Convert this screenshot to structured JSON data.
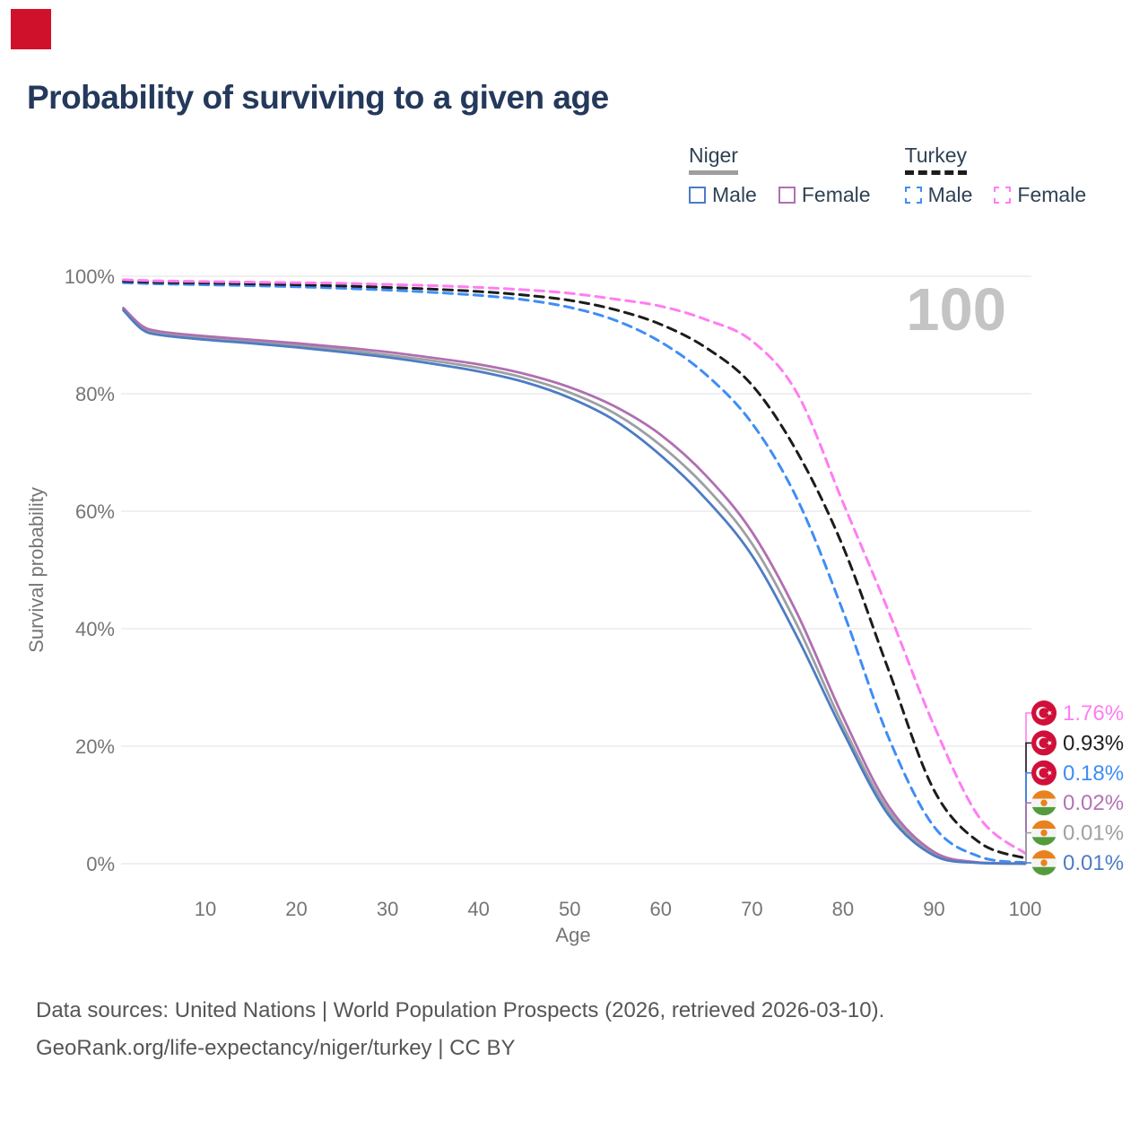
{
  "corner_badge": {
    "color": "#d0112b"
  },
  "title": "Probability of surviving to a given age",
  "legend": {
    "groups": [
      {
        "name": "Niger",
        "line_style": "solid",
        "line_color": "#9e9e9e",
        "items": [
          {
            "label": "Male",
            "color": "#4d7cc3",
            "dashed": false
          },
          {
            "label": "Female",
            "color": "#b06fb0",
            "dashed": false
          }
        ]
      },
      {
        "name": "Turkey",
        "line_style": "dashed",
        "line_color": "#1c1c1c",
        "items": [
          {
            "label": "Male",
            "color": "#3f8df6",
            "dashed": true
          },
          {
            "label": "Female",
            "color": "#ff7df2",
            "dashed": true
          }
        ]
      }
    ]
  },
  "watermark": "100",
  "chart_data": {
    "type": "line",
    "title": "Probability of surviving to a given age",
    "xlabel": "Age",
    "ylabel": "Survival probability",
    "xlim": [
      1,
      100
    ],
    "ylim": [
      0,
      100
    ],
    "grid": "horizontal",
    "x_ticks": [
      10,
      20,
      30,
      40,
      50,
      60,
      70,
      80,
      90,
      100
    ],
    "y_ticks": [
      0,
      20,
      40,
      60,
      80,
      100
    ],
    "y_tick_suffix": "%",
    "x": [
      1,
      3,
      5,
      10,
      15,
      20,
      25,
      30,
      35,
      40,
      45,
      50,
      55,
      60,
      65,
      70,
      75,
      80,
      85,
      90,
      95,
      100
    ],
    "series": [
      {
        "name": "Turkey Male",
        "slug": "turkey-male",
        "color": "#3f8df6",
        "dashed": true,
        "values": [
          98.9,
          98.8,
          98.7,
          98.55,
          98.4,
          98.2,
          97.95,
          97.65,
          97.25,
          96.75,
          96.0,
          94.7,
          92.5,
          88.8,
          83.2,
          75.0,
          62.0,
          43.0,
          21.5,
          6.3,
          1.2,
          0.18
        ]
      },
      {
        "name": "Turkey",
        "slug": "turkey-combined",
        "color": "#1c1c1c",
        "dashed": true,
        "values": [
          99.15,
          99.05,
          98.95,
          98.85,
          98.7,
          98.55,
          98.35,
          98.1,
          97.8,
          97.4,
          96.8,
          95.9,
          94.3,
          91.8,
          87.8,
          81.5,
          70.0,
          54.0,
          33.0,
          12.5,
          3.6,
          0.93
        ]
      },
      {
        "name": "Turkey Female",
        "slug": "turkey-female",
        "color": "#ff7df2",
        "dashed": true,
        "values": [
          99.4,
          99.3,
          99.2,
          99.1,
          99.0,
          98.9,
          98.8,
          98.6,
          98.4,
          98.1,
          97.7,
          97.1,
          96.1,
          94.9,
          92.6,
          89.0,
          80.0,
          61.5,
          43.0,
          23.5,
          7.8,
          1.76
        ]
      },
      {
        "name": "Niger",
        "slug": "niger-combined",
        "color": "#9ca0a3",
        "dashed": false,
        "values": [
          94.4,
          91.3,
          90.3,
          89.5,
          88.9,
          88.2,
          87.5,
          86.6,
          85.6,
          84.4,
          82.7,
          80.2,
          76.6,
          71.2,
          64.0,
          54.5,
          40.5,
          23.5,
          9.0,
          1.7,
          0.15,
          0.01
        ]
      },
      {
        "name": "Niger Female",
        "slug": "niger-female",
        "color": "#b06fb0",
        "dashed": false,
        "values": [
          94.6,
          91.6,
          90.6,
          89.8,
          89.2,
          88.6,
          87.9,
          87.1,
          86.1,
          85.0,
          83.4,
          81.1,
          77.8,
          73.0,
          66.0,
          56.5,
          42.5,
          25.0,
          9.8,
          2.0,
          0.2,
          0.02
        ]
      },
      {
        "name": "Niger Male",
        "slug": "niger-male",
        "color": "#4d7cc3",
        "dashed": false,
        "values": [
          94.2,
          91.0,
          90.0,
          89.2,
          88.6,
          87.9,
          87.1,
          86.2,
          85.1,
          83.8,
          82.0,
          79.3,
          75.4,
          69.5,
          62.0,
          52.5,
          38.5,
          22.5,
          8.3,
          1.4,
          0.12,
          0.01
        ]
      }
    ],
    "end_labels": [
      {
        "text": "1.76%",
        "value": 1.76,
        "color": "#ff7df2",
        "flag": "turkey"
      },
      {
        "text": "0.93%",
        "value": 0.93,
        "color": "#1f1f1f",
        "flag": "turkey"
      },
      {
        "text": "0.18%",
        "value": 0.18,
        "color": "#3f8df6",
        "flag": "turkey"
      },
      {
        "text": "0.02%",
        "value": 0.02,
        "color": "#b473b4",
        "flag": "niger"
      },
      {
        "text": "0.01%",
        "value": 0.01,
        "color": "#a0a0a0",
        "flag": "niger"
      },
      {
        "text": "0.01%",
        "value": 0.01,
        "color": "#4d7cc3",
        "flag": "niger"
      }
    ],
    "legend_position": "top-right"
  },
  "footer": {
    "line1": "Data sources: United Nations | World Population Prospects (2026, retrieved 2026-03-10).",
    "line2": "GeoRank.org/life-expectancy/niger/turkey | CC BY"
  }
}
